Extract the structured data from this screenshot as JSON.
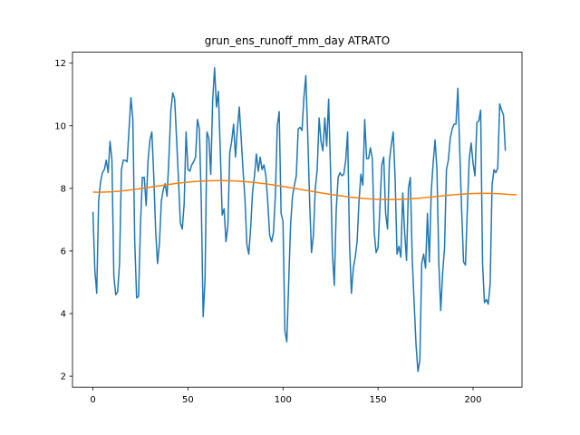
{
  "chart_data": {
    "type": "line",
    "title": "grun_ens_runoff_mm_day ATRATO",
    "xlabel": "",
    "ylabel": "",
    "xlim": [
      -10.75,
      225.75
    ],
    "ylim": [
      1.65,
      12.35
    ],
    "xticks": [
      0,
      50,
      100,
      150,
      200
    ],
    "yticks": [
      2,
      4,
      6,
      8,
      10,
      12
    ],
    "grid": false,
    "colors": {
      "series_1": "#1f77b4",
      "series_2": "#ff7f0e"
    },
    "series": [
      {
        "values": [
          7.25,
          5.4,
          4.65,
          7.6,
          8.2,
          8.5,
          8.6,
          8.9,
          8.5,
          9.5,
          8.9,
          5.2,
          4.6,
          4.7,
          5.6,
          8.6,
          8.9,
          8.9,
          8.85,
          9.9,
          10.9,
          10.2,
          6.3,
          4.5,
          4.55,
          6.8,
          8.35,
          8.35,
          7.45,
          8.9,
          9.55,
          9.8,
          8.4,
          6.65,
          5.6,
          6.25,
          7.6,
          7.95,
          8.15,
          7.75,
          9.0,
          10.5,
          11.05,
          10.85,
          9.6,
          8.3,
          6.9,
          6.7,
          7.5,
          9.8,
          8.6,
          8.55,
          8.75,
          8.85,
          9.0,
          10.2,
          9.9,
          7.6,
          3.9,
          5.1,
          9.8,
          9.6,
          8.45,
          10.8,
          11.85,
          10.6,
          11.1,
          9.2,
          7.15,
          7.35,
          6.3,
          6.8,
          9.15,
          9.5,
          10.05,
          9.0,
          9.9,
          10.6,
          9.6,
          8.55,
          7.65,
          6.2,
          5.9,
          6.75,
          7.9,
          8.4,
          9.1,
          8.55,
          9.0,
          8.6,
          8.75,
          8.4,
          7.55,
          6.5,
          6.3,
          6.6,
          7.8,
          10.0,
          10.45,
          7.2,
          6.95,
          3.45,
          3.1,
          5.0,
          6.85,
          7.75,
          8.1,
          8.4,
          9.9,
          9.95,
          9.85,
          10.9,
          11.6,
          9.75,
          7.6,
          5.95,
          6.5,
          8.0,
          8.6,
          10.25,
          9.5,
          9.2,
          10.25,
          9.35,
          10.85,
          8.6,
          5.95,
          4.9,
          7.3,
          8.35,
          8.5,
          8.4,
          8.45,
          8.9,
          9.8,
          6.25,
          4.65,
          5.45,
          5.8,
          6.3,
          7.6,
          8.45,
          8.1,
          10.2,
          8.95,
          8.95,
          9.3,
          8.95,
          6.6,
          5.95,
          6.1,
          7.4,
          8.75,
          9.0,
          7.2,
          6.7,
          8.9,
          9.4,
          9.8,
          8.3,
          5.9,
          6.15,
          5.8,
          7.85,
          6.6,
          5.7,
          8.0,
          8.35,
          5.75,
          4.35,
          3.0,
          2.15,
          2.5,
          5.6,
          5.9,
          5.45,
          7.2,
          5.65,
          7.9,
          8.8,
          9.55,
          8.6,
          5.6,
          4.1,
          5.3,
          6.1,
          8.6,
          8.9,
          9.6,
          9.9,
          10.05,
          10.05,
          11.2,
          9.2,
          7.3,
          5.65,
          5.55,
          7.35,
          8.95,
          9.45,
          8.8,
          8.4,
          10.1,
          10.15,
          10.5,
          5.6,
          4.35,
          4.45,
          4.3,
          4.95,
          8.1,
          8.6,
          8.5,
          8.65,
          10.7,
          10.5,
          10.35,
          9.2
        ]
      },
      {
        "values": [
          7.88,
          7.879,
          7.878,
          7.878,
          7.878,
          7.879,
          7.881,
          7.883,
          7.886,
          7.889,
          7.893,
          7.897,
          7.902,
          7.907,
          7.913,
          7.918,
          7.925,
          7.931,
          7.938,
          7.945,
          7.953,
          7.96,
          7.968,
          7.977,
          7.985,
          7.993,
          8.002,
          8.011,
          8.02,
          8.029,
          8.038,
          8.047,
          8.056,
          8.065,
          8.074,
          8.083,
          8.092,
          8.101,
          8.109,
          8.118,
          8.126,
          8.134,
          8.142,
          8.15,
          8.158,
          8.165,
          8.172,
          8.179,
          8.186,
          8.192,
          8.198,
          8.204,
          8.209,
          8.214,
          8.219,
          8.223,
          8.227,
          8.231,
          8.234,
          8.237,
          8.24,
          8.242,
          8.244,
          8.246,
          8.247,
          8.248,
          8.248,
          8.248,
          8.248,
          8.247,
          8.246,
          8.245,
          8.243,
          8.241,
          8.238,
          8.235,
          8.232,
          8.228,
          8.224,
          8.22,
          8.215,
          8.21,
          8.205,
          8.199,
          8.193,
          8.187,
          8.18,
          8.173,
          8.166,
          8.159,
          8.151,
          8.143,
          8.135,
          8.126,
          8.118,
          8.109,
          8.1,
          8.091,
          8.081,
          8.072,
          8.062,
          8.052,
          8.042,
          8.032,
          8.022,
          8.012,
          8.001,
          7.991,
          7.981,
          7.97,
          7.96,
          7.95,
          7.939,
          7.929,
          7.918,
          7.908,
          7.898,
          7.887,
          7.877,
          7.867,
          7.857,
          7.847,
          7.838,
          7.828,
          7.819,
          7.809,
          7.8,
          7.791,
          7.782,
          7.773,
          7.765,
          7.756,
          7.748,
          7.74,
          7.733,
          7.725,
          7.718,
          7.711,
          7.705,
          7.698,
          7.692,
          7.686,
          7.681,
          7.676,
          7.671,
          7.667,
          7.663,
          7.659,
          7.656,
          7.653,
          7.651,
          7.648,
          7.647,
          7.645,
          7.644,
          7.644,
          7.644,
          7.644,
          7.645,
          7.646,
          7.647,
          7.649,
          7.651,
          7.654,
          7.657,
          7.66,
          7.663,
          7.667,
          7.671,
          7.676,
          7.68,
          7.685,
          7.69,
          7.695,
          7.701,
          7.706,
          7.712,
          7.718,
          7.724,
          7.73,
          7.736,
          7.742,
          7.748,
          7.754,
          7.76,
          7.766,
          7.772,
          7.778,
          7.784,
          7.789,
          7.795,
          7.8,
          7.805,
          7.81,
          7.814,
          7.818,
          7.822,
          7.826,
          7.829,
          7.832,
          7.835,
          7.837,
          7.839,
          7.84,
          7.841,
          7.842,
          7.842,
          7.842,
          7.841,
          7.84,
          7.838,
          7.836,
          7.834,
          7.831,
          7.828,
          7.824,
          7.82,
          7.816,
          7.811,
          7.806,
          7.8,
          7.8,
          7.8,
          7.8
        ]
      }
    ]
  }
}
